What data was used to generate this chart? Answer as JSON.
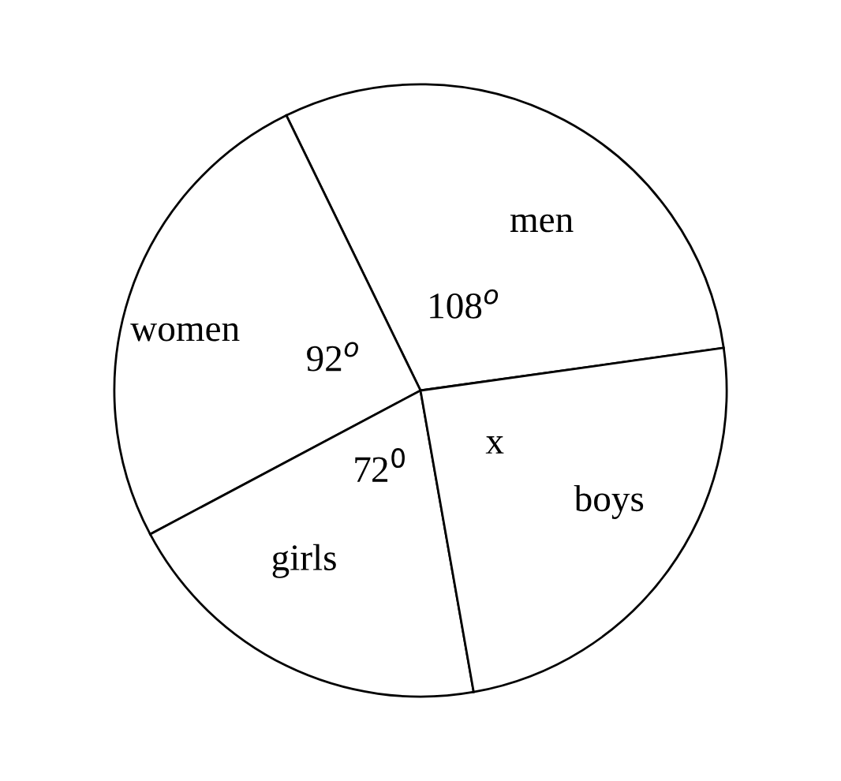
{
  "chart_data": {
    "type": "pie",
    "categories": [
      "men",
      "women",
      "girls",
      "boys"
    ],
    "values": [
      108,
      92,
      72,
      88
    ],
    "value_labels": [
      "108$^{o}$",
      "92$^{o}$",
      "72$^{0}$",
      "x"
    ],
    "colors": [
      "#ffffff",
      "#ffffff",
      "#ffffff",
      "#ffffff"
    ]
  }
}
